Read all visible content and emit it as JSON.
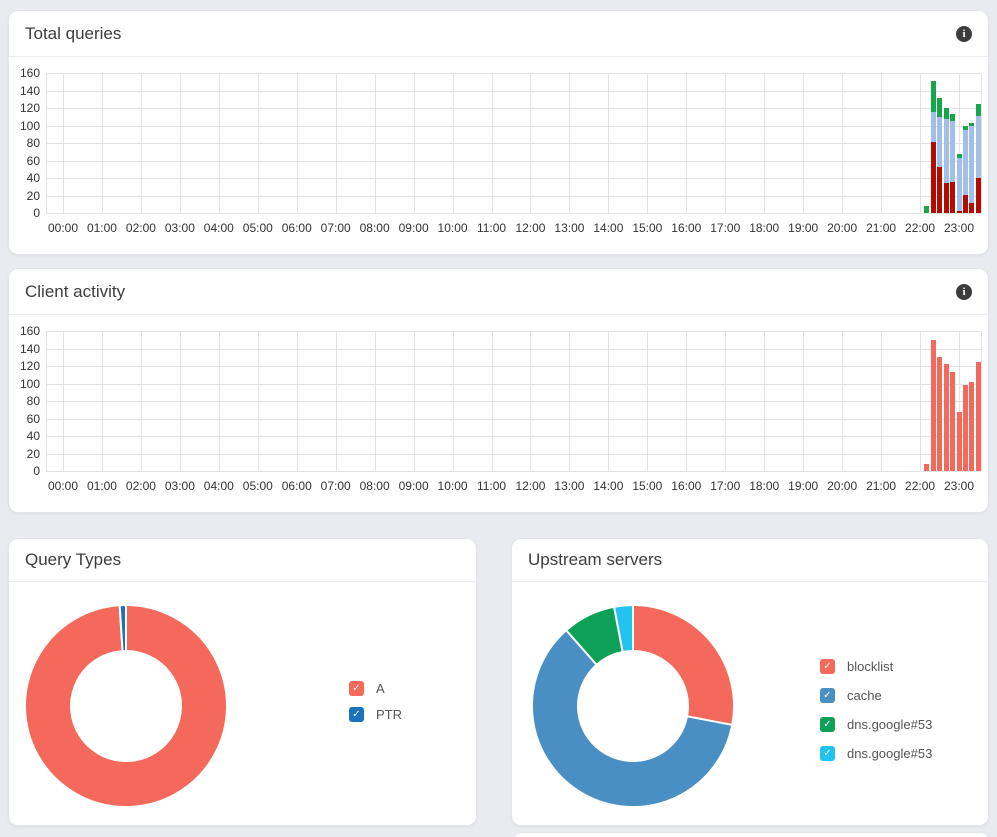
{
  "panels": {
    "total_queries": {
      "title": "Total queries"
    },
    "client_activity": {
      "title": "Client activity"
    },
    "query_types": {
      "title": "Query Types"
    },
    "upstream_servers": {
      "title": "Upstream servers"
    }
  },
  "icons": {
    "info": "i",
    "legend_check": "✓"
  },
  "chart_data": [
    {
      "id": "total-queries",
      "type": "bar",
      "stacked": true,
      "title": "Total queries",
      "ylim": [
        0,
        160
      ],
      "y_ticks": [
        0,
        20,
        40,
        60,
        80,
        100,
        120,
        140,
        160
      ],
      "x_tick_labels": [
        "00:00",
        "01:00",
        "02:00",
        "03:00",
        "04:00",
        "05:00",
        "06:00",
        "07:00",
        "08:00",
        "09:00",
        "10:00",
        "11:00",
        "12:00",
        "13:00",
        "14:00",
        "15:00",
        "16:00",
        "17:00",
        "18:00",
        "19:00",
        "20:00",
        "21:00",
        "22:00",
        "23:00"
      ],
      "x": [
        "22:10",
        "22:20",
        "22:30",
        "22:40",
        "22:50",
        "23:00",
        "23:10",
        "23:20",
        "23:30"
      ],
      "series": [
        {
          "name": "dark-red-segment",
          "color": "#b30d02",
          "values": [
            0,
            81,
            53,
            34,
            36,
            2,
            21,
            11,
            40
          ]
        },
        {
          "name": "light-blue-segment",
          "color": "#a2bfec",
          "values": [
            0,
            34,
            57,
            73,
            69,
            61,
            74,
            88,
            71
          ]
        },
        {
          "name": "green-segment",
          "color": "#17a74a",
          "values": [
            8,
            36,
            21,
            13,
            8,
            4,
            4,
            4,
            14
          ]
        }
      ],
      "grid": true,
      "legend_position": "none"
    },
    {
      "id": "client-activity",
      "type": "bar",
      "stacked": false,
      "title": "Client activity",
      "ylim": [
        0,
        160
      ],
      "y_ticks": [
        0,
        20,
        40,
        60,
        80,
        100,
        120,
        140,
        160
      ],
      "x_tick_labels": [
        "00:00",
        "01:00",
        "02:00",
        "03:00",
        "04:00",
        "05:00",
        "06:00",
        "07:00",
        "08:00",
        "09:00",
        "10:00",
        "11:00",
        "12:00",
        "13:00",
        "14:00",
        "15:00",
        "16:00",
        "17:00",
        "18:00",
        "19:00",
        "20:00",
        "21:00",
        "22:00",
        "23:00"
      ],
      "x": [
        "22:10",
        "22:20",
        "22:30",
        "22:40",
        "22:50",
        "23:00",
        "23:10",
        "23:20",
        "23:30"
      ],
      "series": [
        {
          "name": "client-queries",
          "color": "#f4695c",
          "values": [
            8,
            150,
            130,
            122,
            113,
            67,
            98,
            102,
            125
          ]
        }
      ],
      "grid": true,
      "legend_position": "none"
    },
    {
      "id": "query-types",
      "type": "pie",
      "title": "Query Types",
      "legend_position": "right",
      "slices": [
        {
          "label": "A",
          "color": "#f4695c",
          "value": 99
        },
        {
          "label": "PTR",
          "color": "#1a73bb",
          "value": 1
        }
      ]
    },
    {
      "id": "upstream-servers",
      "type": "pie",
      "title": "Upstream servers",
      "legend_position": "right",
      "slices": [
        {
          "label": "blocklist",
          "color": "#f4695c",
          "value": 28
        },
        {
          "label": "cache",
          "color": "#4a8fc4",
          "value": 60.5
        },
        {
          "label": "dns.google#53",
          "color": "#0ca157",
          "value": 8.5
        },
        {
          "label": "dns.google#53",
          "color": "#22c3ef",
          "value": 3
        }
      ]
    }
  ]
}
